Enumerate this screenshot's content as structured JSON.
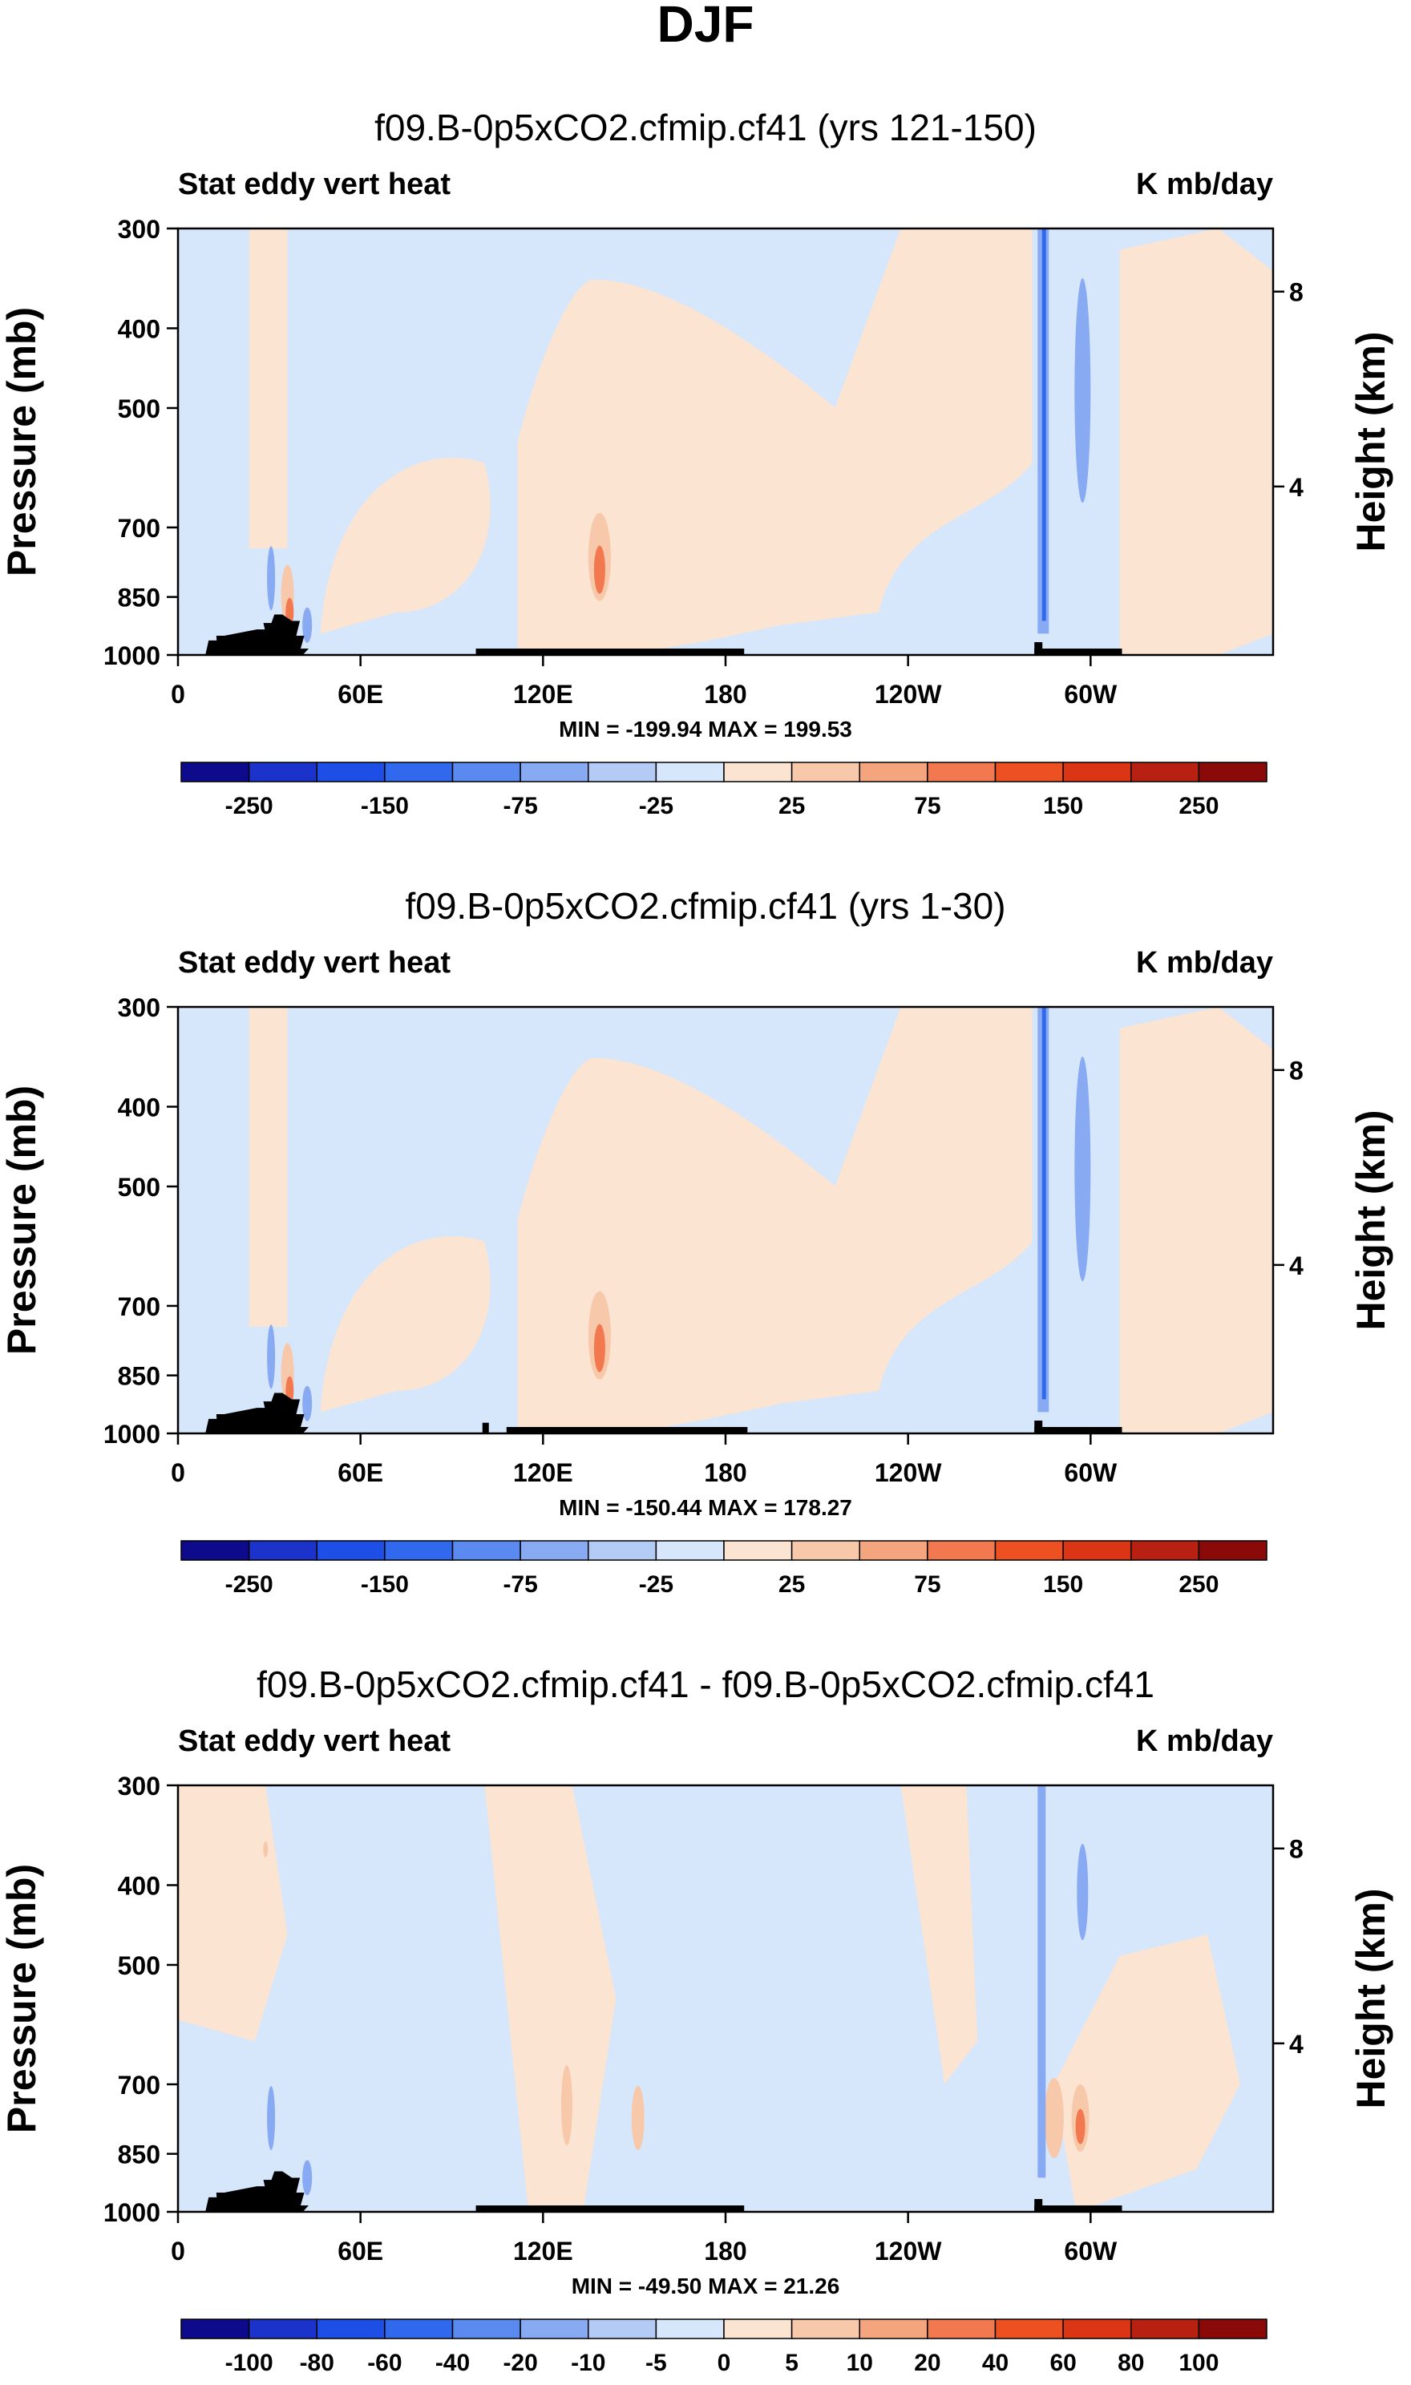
{
  "page_title": "DJF",
  "chart_data": [
    {
      "type": "contour",
      "title": "f09.B-0p5xCO2.cfmip.cf41 (yrs 121-150)",
      "left_label": "Stat eddy vert heat",
      "right_label": "K mb/day",
      "ylabel": "Pressure (mb)",
      "y2label": "Height (km)",
      "y_ticks": [
        "300",
        "400",
        "500",
        "700",
        "850",
        "1000"
      ],
      "y2_ticks": [
        "8",
        "4"
      ],
      "x_ticks": [
        "0",
        "60E",
        "120E",
        "180",
        "120W",
        "60W"
      ],
      "stats": "MIN = -199.94  MAX = 199.53",
      "colorbar_labels": [
        "-250",
        "-150",
        "-75",
        "-25",
        "25",
        "75",
        "150",
        "250"
      ],
      "colorbar_colors": [
        "#0d0b8b",
        "#1c33cb",
        "#1d4fe6",
        "#3169ee",
        "#5a8aef",
        "#88aaf2",
        "#b4cbf6",
        "#d6e6fb",
        "#fce4d2",
        "#f8c8aa",
        "#f5a57e",
        "#f2794f",
        "#ee5121",
        "#da3514",
        "#b82011",
        "#8a0a0a"
      ]
    },
    {
      "type": "contour",
      "title": "f09.B-0p5xCO2.cfmip.cf41 (yrs 1-30)",
      "left_label": "Stat eddy vert heat",
      "right_label": "K mb/day",
      "ylabel": "Pressure (mb)",
      "y2label": "Height (km)",
      "y_ticks": [
        "300",
        "400",
        "500",
        "700",
        "850",
        "1000"
      ],
      "y2_ticks": [
        "8",
        "4"
      ],
      "x_ticks": [
        "0",
        "60E",
        "120E",
        "180",
        "120W",
        "60W"
      ],
      "stats": "MIN = -150.44  MAX = 178.27",
      "colorbar_labels": [
        "-250",
        "-150",
        "-75",
        "-25",
        "25",
        "75",
        "150",
        "250"
      ],
      "colorbar_colors": [
        "#0d0b8b",
        "#1c33cb",
        "#1d4fe6",
        "#3169ee",
        "#5a8aef",
        "#88aaf2",
        "#b4cbf6",
        "#d6e6fb",
        "#fce4d2",
        "#f8c8aa",
        "#f5a57e",
        "#f2794f",
        "#ee5121",
        "#da3514",
        "#b82011",
        "#8a0a0a"
      ]
    },
    {
      "type": "contour",
      "title": "f09.B-0p5xCO2.cfmip.cf41 - f09.B-0p5xCO2.cfmip.cf41",
      "left_label": "Stat eddy vert heat",
      "right_label": "K mb/day",
      "ylabel": "Pressure (mb)",
      "y2label": "Height (km)",
      "y_ticks": [
        "300",
        "400",
        "500",
        "700",
        "850",
        "1000"
      ],
      "y2_ticks": [
        "8",
        "4"
      ],
      "x_ticks": [
        "0",
        "60E",
        "120E",
        "180",
        "120W",
        "60W"
      ],
      "stats": "MIN = -49.50  MAX = 21.26",
      "colorbar_labels": [
        "-100",
        "-80",
        "-60",
        "-40",
        "-20",
        "-10",
        "-5",
        "0",
        "5",
        "10",
        "20",
        "40",
        "60",
        "80",
        "100"
      ],
      "colorbar_colors": [
        "#0d0b8b",
        "#1c33cb",
        "#1d4fe6",
        "#3169ee",
        "#5a8aef",
        "#88aaf2",
        "#b4cbf6",
        "#d6e6fb",
        "#fce4d2",
        "#f8c8aa",
        "#f5a57e",
        "#f2794f",
        "#ee5121",
        "#da3514",
        "#b82011",
        "#8a0a0a"
      ]
    }
  ]
}
